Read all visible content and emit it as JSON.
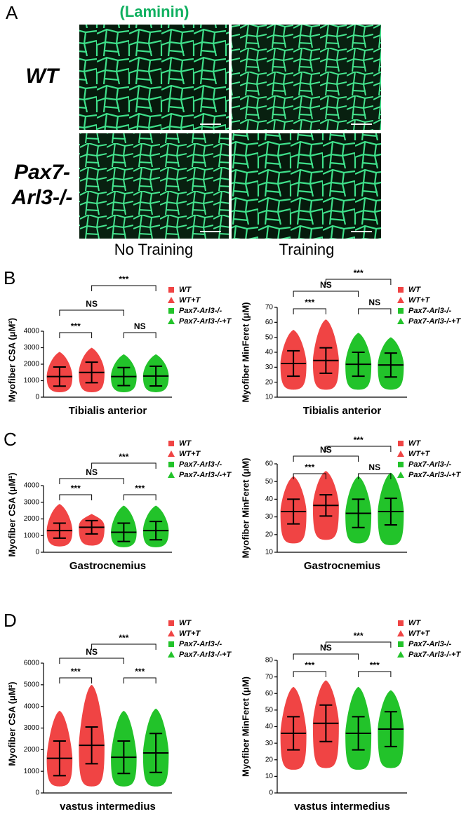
{
  "figure": {
    "panel_a": {
      "letter": "A",
      "stain": "(Laminin)",
      "row_labels": [
        {
          "lines": [
            "WT"
          ]
        },
        {
          "lines": [
            "Pax7-",
            "Arl3-/-"
          ]
        }
      ],
      "column_labels": [
        "No Training",
        "Training"
      ]
    },
    "charts": [
      {
        "type": "dotplot",
        "panel": "B",
        "ylabel": "Myofiber CSA (μM²)",
        "xlabel": "Tibialis anterior",
        "ylim": [
          0,
          4000
        ],
        "yticks": [
          0,
          1000,
          2000,
          3000,
          4000
        ],
        "series": [
          {
            "name": "WT",
            "color": "#f04444",
            "marker": "square",
            "mean": 1250,
            "sd": 580,
            "range": [
              300,
              2750
            ]
          },
          {
            "name": "WT+T",
            "color": "#f04444",
            "marker": "triangle",
            "mean": 1500,
            "sd": 620,
            "range": [
              300,
              3000
            ]
          },
          {
            "name": "Pax7-Arl3-/-",
            "color": "#22c32a",
            "marker": "square",
            "mean": 1250,
            "sd": 550,
            "range": [
              300,
              2600
            ]
          },
          {
            "name": "Pax7-Arl3-/-+T",
            "color": "#22c32a",
            "marker": "triangle",
            "mean": 1280,
            "sd": 600,
            "range": [
              300,
              2600
            ]
          }
        ],
        "comparisons": [
          {
            "label": "***",
            "pair": [
              0,
              1
            ]
          },
          {
            "label": "NS",
            "pair": [
              0,
              2
            ]
          },
          {
            "label": "***",
            "pair": [
              1,
              3
            ]
          },
          {
            "label": "NS",
            "pair": [
              2,
              3
            ]
          }
        ]
      },
      {
        "type": "dotplot",
        "ylabel": "Myofiber MinFeret (μM)",
        "xlabel": "Tibialis anterior",
        "ylim": [
          10,
          70
        ],
        "yticks": [
          10,
          20,
          30,
          40,
          50,
          60,
          70
        ],
        "series": [
          {
            "name": "WT",
            "color": "#f04444",
            "marker": "square",
            "mean": 32.5,
            "sd": 8.5,
            "range": [
              15,
              55
            ]
          },
          {
            "name": "WT+T",
            "color": "#f04444",
            "marker": "triangle",
            "mean": 34.5,
            "sd": 8.5,
            "range": [
              15,
              62
            ]
          },
          {
            "name": "Pax7-Arl3-/-",
            "color": "#22c32a",
            "marker": "square",
            "mean": 32,
            "sd": 8,
            "range": [
              15,
              53
            ]
          },
          {
            "name": "Pax7-Arl3-/-+T",
            "color": "#22c32a",
            "marker": "triangle",
            "mean": 31.5,
            "sd": 8,
            "range": [
              15,
              50
            ]
          }
        ],
        "comparisons": [
          {
            "label": "***",
            "pair": [
              0,
              1
            ]
          },
          {
            "label": "NS",
            "pair": [
              0,
              2
            ]
          },
          {
            "label": "***",
            "pair": [
              1,
              3
            ]
          },
          {
            "label": "NS",
            "pair": [
              2,
              3
            ]
          }
        ]
      },
      {
        "type": "dotplot",
        "panel": "C",
        "ylabel": "Myofiber CSA (μM²)",
        "xlabel": "Gastrocnemius",
        "ylim": [
          0,
          4000
        ],
        "yticks": [
          0,
          1000,
          2000,
          3000,
          4000
        ],
        "series": [
          {
            "name": "WT",
            "color": "#f04444",
            "marker": "square",
            "mean": 1300,
            "sd": 450,
            "range": [
              350,
              2900
            ]
          },
          {
            "name": "WT+T",
            "color": "#f04444",
            "marker": "triangle",
            "mean": 1500,
            "sd": 400,
            "range": [
              400,
              2300
            ]
          },
          {
            "name": "Pax7-Arl3-/-",
            "color": "#22c32a",
            "marker": "square",
            "mean": 1200,
            "sd": 550,
            "range": [
              300,
              2800
            ]
          },
          {
            "name": "Pax7-Arl3-/-+T",
            "color": "#22c32a",
            "marker": "triangle",
            "mean": 1300,
            "sd": 550,
            "range": [
              300,
              2800
            ]
          }
        ],
        "comparisons": [
          {
            "label": "***",
            "pair": [
              0,
              1
            ]
          },
          {
            "label": "NS",
            "pair": [
              0,
              2
            ]
          },
          {
            "label": "***",
            "pair": [
              1,
              3
            ]
          },
          {
            "label": "***",
            "pair": [
              2,
              3
            ]
          }
        ]
      },
      {
        "type": "dotplot",
        "ylabel": "Myofiber MinFeret (μM)",
        "xlabel": "Gastrocnemius",
        "ylim": [
          10,
          60
        ],
        "yticks": [
          10,
          20,
          30,
          40,
          50,
          60
        ],
        "series": [
          {
            "name": "WT",
            "color": "#f04444",
            "marker": "square",
            "mean": 33,
            "sd": 7,
            "range": [
              15,
              53
            ]
          },
          {
            "name": "WT+T",
            "color": "#f04444",
            "marker": "triangle",
            "mean": 36.5,
            "sd": 6,
            "range": [
              17,
              56
            ]
          },
          {
            "name": "Pax7-Arl3-/-",
            "color": "#22c32a",
            "marker": "square",
            "mean": 32,
            "sd": 8,
            "range": [
              15,
              53
            ]
          },
          {
            "name": "Pax7-Arl3-/-+T",
            "color": "#22c32a",
            "marker": "triangle",
            "mean": 33,
            "sd": 7.5,
            "range": [
              14,
              55
            ]
          }
        ],
        "comparisons": [
          {
            "label": "***",
            "pair": [
              0,
              1
            ]
          },
          {
            "label": "NS",
            "pair": [
              0,
              2
            ]
          },
          {
            "label": "***",
            "pair": [
              1,
              3
            ]
          },
          {
            "label": "NS",
            "pair": [
              2,
              3
            ]
          }
        ]
      },
      {
        "type": "dotplot",
        "panel": "D",
        "ylabel": "Myofiber CSA (μM²)",
        "xlabel": "vastus intermedius",
        "ylim": [
          0,
          6000
        ],
        "yticks": [
          0,
          1000,
          2000,
          3000,
          4000,
          5000,
          6000
        ],
        "series": [
          {
            "name": "WT",
            "color": "#f04444",
            "marker": "square",
            "mean": 1600,
            "sd": 800,
            "range": [
              300,
              3800
            ]
          },
          {
            "name": "WT+T",
            "color": "#f04444",
            "marker": "triangle",
            "mean": 2200,
            "sd": 850,
            "range": [
              300,
              5000
            ]
          },
          {
            "name": "Pax7-Arl3-/-",
            "color": "#22c32a",
            "marker": "square",
            "mean": 1650,
            "sd": 750,
            "range": [
              300,
              3800
            ]
          },
          {
            "name": "Pax7-Arl3-/-+T",
            "color": "#22c32a",
            "marker": "triangle",
            "mean": 1850,
            "sd": 900,
            "range": [
              300,
              3900
            ]
          }
        ],
        "comparisons": [
          {
            "label": "***",
            "pair": [
              0,
              1
            ]
          },
          {
            "label": "NS",
            "pair": [
              0,
              2
            ]
          },
          {
            "label": "***",
            "pair": [
              1,
              3
            ]
          },
          {
            "label": "***",
            "pair": [
              2,
              3
            ]
          }
        ]
      },
      {
        "type": "dotplot",
        "ylabel": "Myofiber MinFeret (μM)",
        "xlabel": "vastus intermedius",
        "ylim": [
          0,
          80
        ],
        "yticks": [
          0,
          10,
          20,
          30,
          40,
          50,
          60,
          70,
          80
        ],
        "series": [
          {
            "name": "WT",
            "color": "#f04444",
            "marker": "square",
            "mean": 36,
            "sd": 10,
            "range": [
              14,
              64
            ]
          },
          {
            "name": "WT+T",
            "color": "#f04444",
            "marker": "triangle",
            "mean": 42,
            "sd": 11,
            "range": [
              15,
              68
            ]
          },
          {
            "name": "Pax7-Arl3-/-",
            "color": "#22c32a",
            "marker": "square",
            "mean": 36,
            "sd": 10,
            "range": [
              14,
              64
            ]
          },
          {
            "name": "Pax7-Arl3-/-+T",
            "color": "#22c32a",
            "marker": "triangle",
            "mean": 38.5,
            "sd": 10.5,
            "range": [
              15,
              62
            ]
          }
        ],
        "comparisons": [
          {
            "label": "***",
            "pair": [
              0,
              1
            ]
          },
          {
            "label": "NS",
            "pair": [
              0,
              2
            ]
          },
          {
            "label": "***",
            "pair": [
              1,
              3
            ]
          },
          {
            "label": "***",
            "pair": [
              2,
              3
            ]
          }
        ]
      }
    ]
  }
}
